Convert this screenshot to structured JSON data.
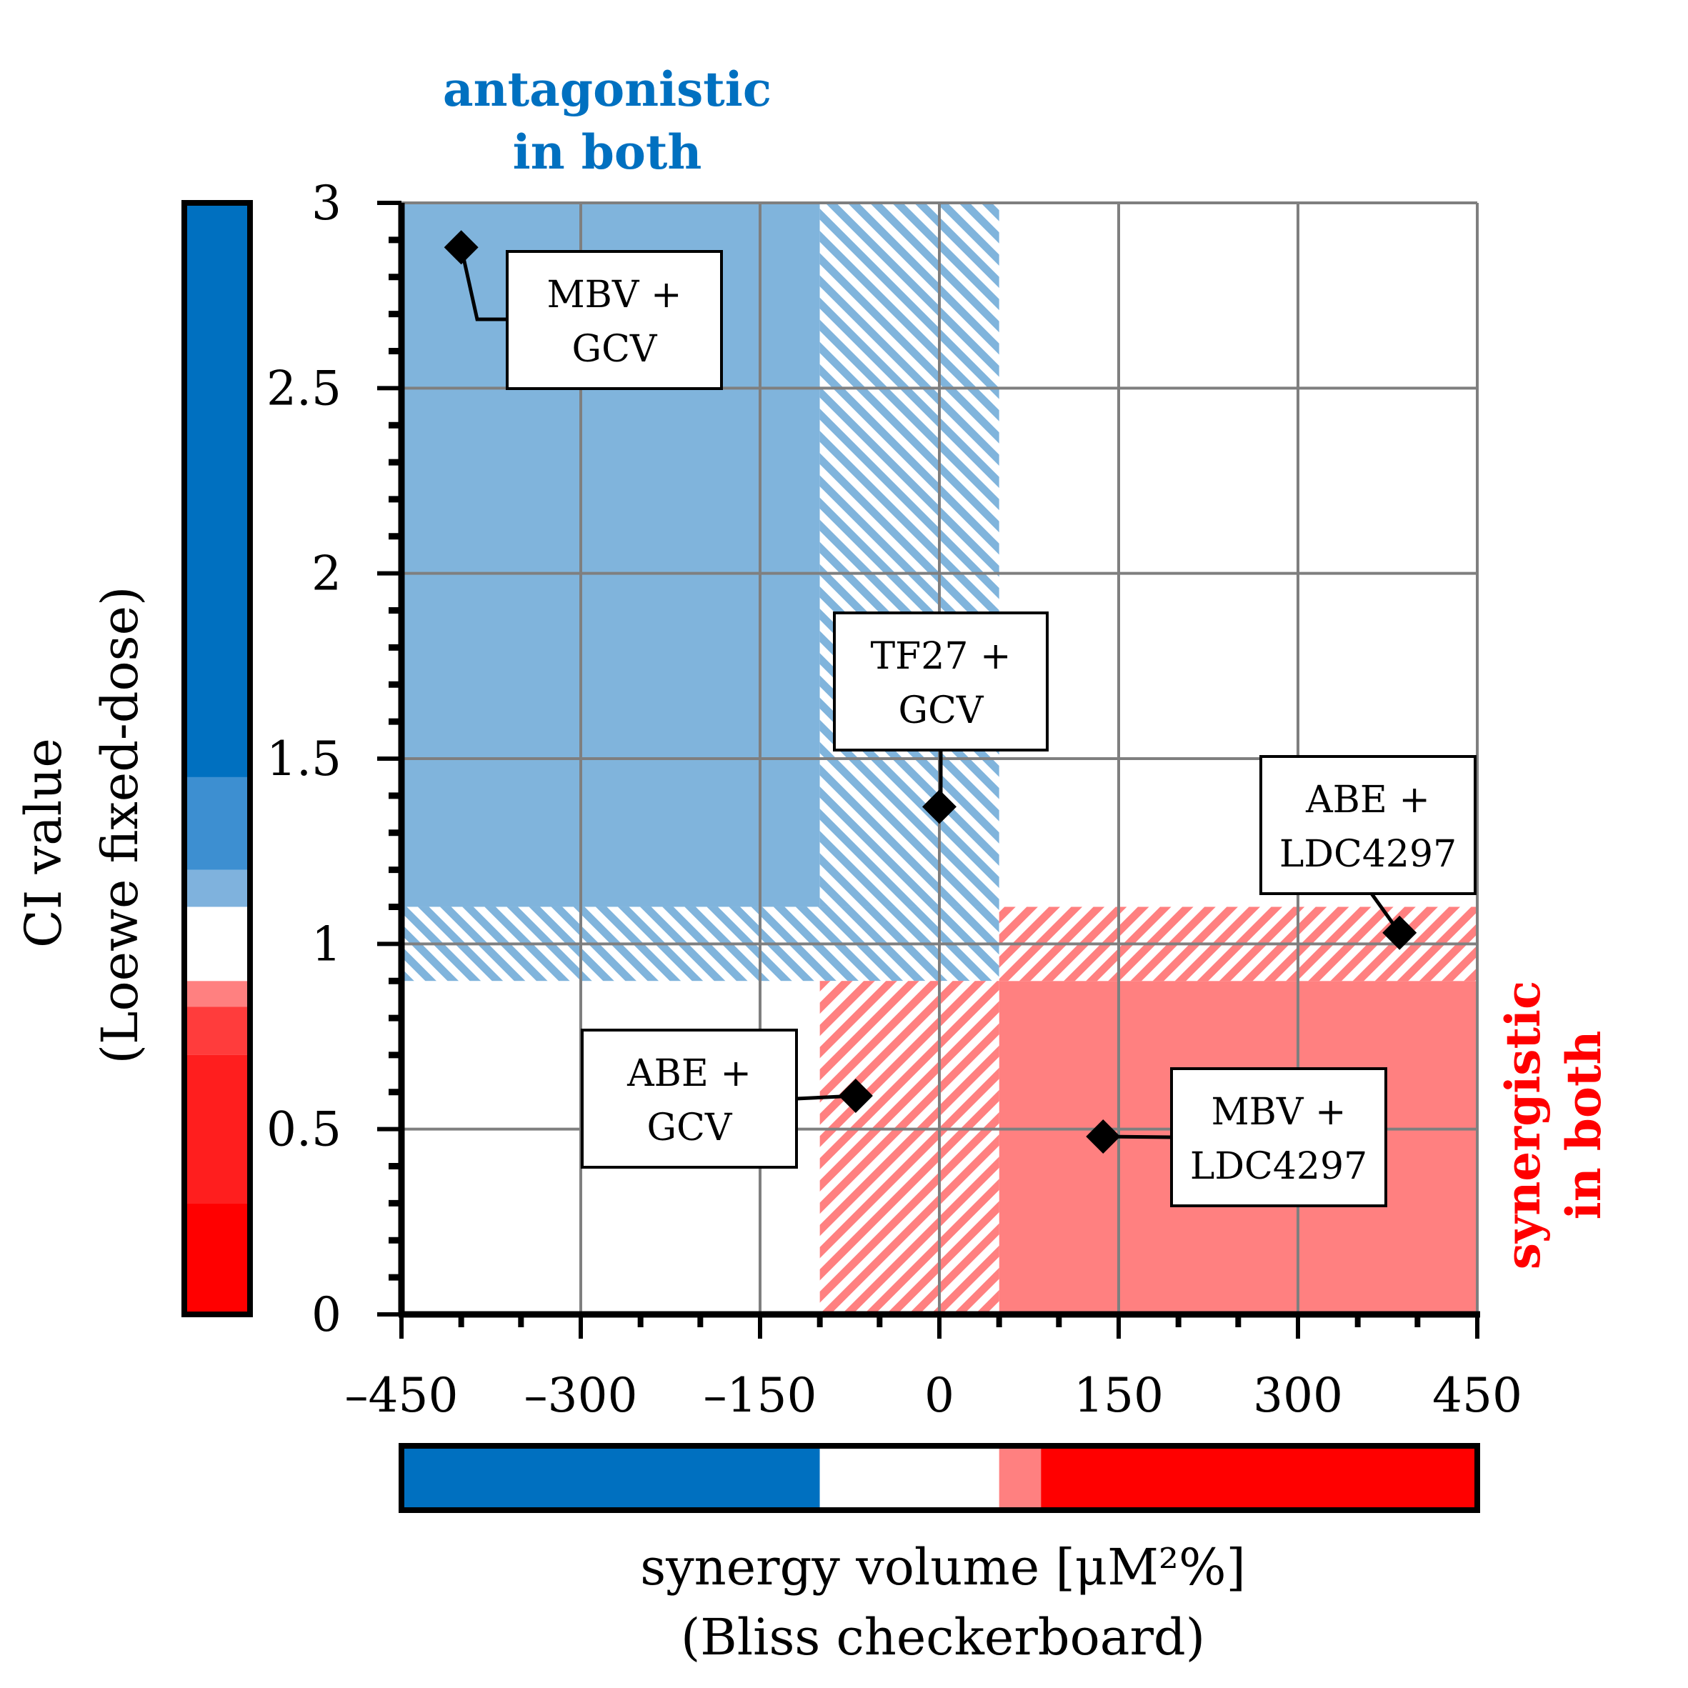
{
  "chart_data": {
    "type": "scatter",
    "title": "",
    "xlabel": [
      "synergy volume [μM²%]",
      "(Bliss checkerboard)"
    ],
    "ylabel": [
      "CI value",
      "(Loewe fixed-dose)"
    ],
    "xlim": [
      -450,
      450
    ],
    "ylim": [
      0,
      3
    ],
    "xticks": [
      -450,
      -300,
      -150,
      0,
      150,
      300,
      450
    ],
    "xtick_labels": [
      "–450",
      "–300",
      "–150",
      "0",
      "150",
      "300",
      "450"
    ],
    "yticks": [
      0,
      0.5,
      1,
      1.5,
      2,
      2.5,
      3
    ],
    "ytick_labels": [
      "0",
      "0.5",
      "1",
      "1.5",
      "2",
      "2.5",
      "3"
    ],
    "grid": true,
    "points": [
      {
        "label": "MBV + GCV",
        "lines": [
          "MBV +",
          "GCV"
        ],
        "x": -400,
        "y": 2.88
      },
      {
        "label": "TF27 + GCV",
        "lines": [
          "TF27 +",
          "GCV"
        ],
        "x": 0,
        "y": 1.37
      },
      {
        "label": "ABE + LDC4297",
        "lines": [
          "ABE +",
          "LDC4297"
        ],
        "x": 385,
        "y": 1.03
      },
      {
        "label": "ABE + GCV",
        "lines": [
          "ABE +",
          "GCV"
        ],
        "x": -70,
        "y": 0.59
      },
      {
        "label": "MBV + LDC4297",
        "lines": [
          "MBV +",
          "LDC4297"
        ],
        "x": 137,
        "y": 0.48
      }
    ],
    "regions": [
      {
        "name": "antagonistic",
        "x": [
          -450,
          -100
        ],
        "y": [
          1.1,
          3
        ],
        "fill": "solid",
        "color": "#80b4dc"
      },
      {
        "name": "antagonistic-partial-x",
        "x": [
          -100,
          50
        ],
        "y": [
          1.1,
          3
        ],
        "fill": "hatched",
        "color": "#80b4dc"
      },
      {
        "name": "antagonistic-partial-y",
        "x": [
          -450,
          50
        ],
        "y": [
          0.9,
          1.1
        ],
        "fill": "hatched",
        "color": "#80b4dc"
      },
      {
        "name": "synergistic",
        "x": [
          50,
          450
        ],
        "y": [
          0,
          0.9
        ],
        "fill": "solid",
        "color": "#ff8080"
      },
      {
        "name": "synergistic-partial-x",
        "x": [
          -100,
          50
        ],
        "y": [
          0,
          0.9
        ],
        "fill": "hatched",
        "color": "#ff8080"
      },
      {
        "name": "synergistic-partial-y",
        "x": [
          50,
          450
        ],
        "y": [
          0.9,
          1.1
        ],
        "fill": "hatched",
        "color": "#ff8080"
      }
    ],
    "annotations": {
      "antagonistic": [
        "antagonistic",
        "in both"
      ],
      "synergistic": [
        "synergistic",
        "in both"
      ]
    },
    "y_colorbar": [
      {
        "from": 0,
        "to": 0.3,
        "color": "#ff0000"
      },
      {
        "from": 0.3,
        "to": 0.7,
        "color": "#ff1e1e"
      },
      {
        "from": 0.7,
        "to": 0.83,
        "color": "#ff3c3c"
      },
      {
        "from": 0.83,
        "to": 0.9,
        "color": "#ff8080"
      },
      {
        "from": 0.9,
        "to": 1.1,
        "color": "#ffffff"
      },
      {
        "from": 1.1,
        "to": 1.2,
        "color": "#7fb2dd"
      },
      {
        "from": 1.2,
        "to": 1.45,
        "color": "#3d8fd1"
      },
      {
        "from": 1.45,
        "to": 3,
        "color": "#0070c0"
      }
    ],
    "x_colorbar": [
      {
        "from": -450,
        "to": -100,
        "color": "#0070c0"
      },
      {
        "from": -100,
        "to": 50,
        "color": "#ffffff"
      },
      {
        "from": 50,
        "to": 85,
        "color": "#ff8080"
      },
      {
        "from": 85,
        "to": 450,
        "color": "#ff0000"
      }
    ],
    "colors": {
      "antagonistic_text": "#0070c0",
      "synergistic_text": "#ff0000",
      "grid": "#7f7f7f"
    }
  }
}
